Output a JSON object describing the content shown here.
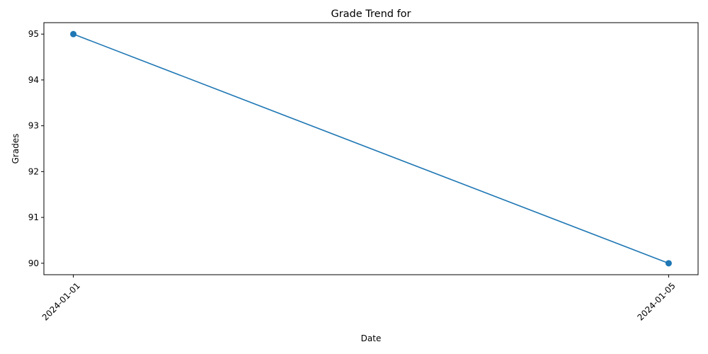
{
  "chart_data": {
    "type": "line",
    "title": "Grade Trend for",
    "xlabel": "Date",
    "ylabel": "Grades",
    "x": [
      "2024-01-01",
      "2024-01-05"
    ],
    "series": [
      {
        "values": [
          95,
          90
        ],
        "color": "#1f77b4",
        "marker": "circle"
      }
    ],
    "yticks": [
      "90",
      "91",
      "92",
      "93",
      "94",
      "95"
    ],
    "ylim": [
      89.75,
      95.25
    ],
    "xtick_rotation": 45,
    "grid": false,
    "legend": "none"
  }
}
